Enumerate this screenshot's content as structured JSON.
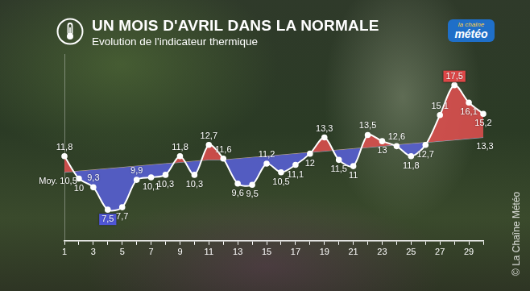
{
  "chart_data": {
    "type": "line",
    "title": "UN MOIS D'AVRIL DANS LA NORMALE",
    "subtitle": "Evolution de l'indicateur thermique",
    "annotations": [
      "la chaîne",
      "météo",
      "© La Chaîne Météo"
    ],
    "categories": [
      1,
      null,
      3,
      null,
      5,
      null,
      7,
      null,
      9,
      null,
      11,
      null,
      13,
      null,
      15,
      null,
      17,
      null,
      19,
      null,
      21,
      null,
      23,
      null,
      25,
      null,
      27,
      null,
      29,
      null
    ],
    "series": [
      {
        "name": "Indicateur thermique",
        "color": "#ffffff",
        "marker": "circle",
        "line_style": "solid",
        "values": [
          11.8,
          10,
          9.3,
          7.5,
          7.7,
          9.9,
          10.1,
          10.3,
          11.8,
          10.3,
          12.7,
          11.6,
          9.6,
          9.5,
          11.2,
          10.5,
          11.1,
          12,
          13.3,
          11.5,
          11,
          13.5,
          13,
          12.6,
          11.8,
          12.7,
          15.1,
          17.5,
          16.1,
          15.2
        ],
        "value_labels": [
          "11,8",
          "10",
          "9,3",
          "7,5",
          "7,7",
          "9,9",
          "10,1",
          "10,3",
          "11,8",
          "10,3",
          "12,7",
          "11,6",
          "9,6",
          "9,5",
          "11,2",
          "10,5",
          "11,1",
          "12",
          "13,3",
          "11,5",
          "11",
          "13,5",
          "13",
          "12,6",
          "11,8",
          "12,7",
          "15,1",
          "17,5",
          "16,1",
          "15,2"
        ]
      },
      {
        "name": "Moy.",
        "color": "#ffffff",
        "marker": "none",
        "line_style": "solid",
        "values": [
          10.5,
          10.6,
          10.7,
          10.8,
          10.9,
          11.0,
          11.1,
          11.2,
          11.3,
          11.4,
          11.5,
          11.5,
          11.6,
          11.7,
          11.8,
          11.9,
          12.0,
          12.1,
          12.2,
          12.3,
          12.4,
          12.5,
          12.6,
          12.7,
          12.8,
          12.9,
          13.0,
          13.1,
          13.2,
          13.3
        ],
        "value_labels": [
          "Moy. 10,5",
          null,
          null,
          null,
          null,
          null,
          null,
          null,
          null,
          null,
          null,
          null,
          null,
          null,
          null,
          null,
          null,
          null,
          null,
          null,
          null,
          null,
          null,
          null,
          null,
          null,
          null,
          null,
          null,
          "13,3"
        ]
      }
    ],
    "ylim": [
      5,
      20
    ],
    "data_labels": true,
    "tick_labels": "x",
    "grid": false
  }
}
